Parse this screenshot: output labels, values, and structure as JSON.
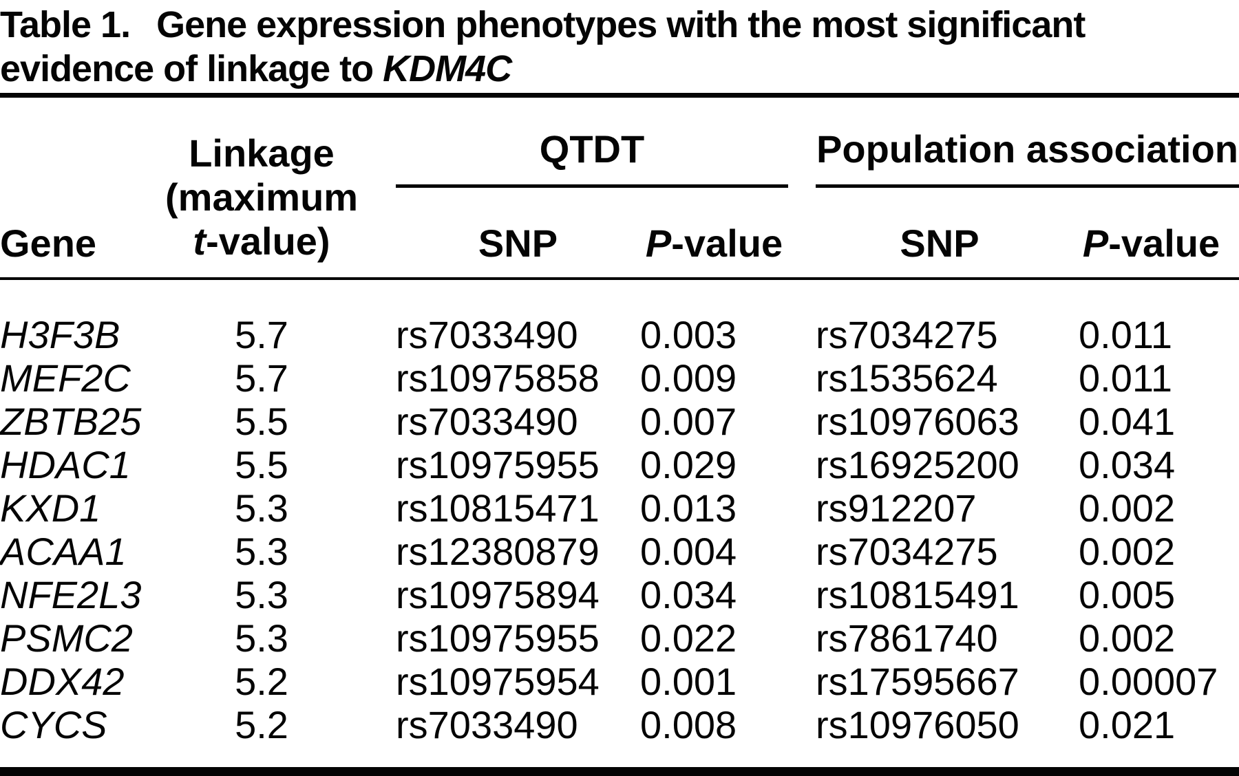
{
  "table": {
    "title": {
      "label": "Table 1.",
      "line1": "Gene expression phenotypes with the most significant",
      "line2": "evidence of linkage to",
      "line2_gene": "KDM4C"
    },
    "headers": {
      "gene": "Gene",
      "linkage_line1": "Linkage",
      "linkage_line2": "(maximum",
      "linkage_line3_italic": "t",
      "linkage_line3_rest": "-value)",
      "qtdt_group": "QTDT",
      "population_group": "Population association",
      "snp": "SNP",
      "pvalue_italic": "P",
      "pvalue_rest": "-value"
    },
    "rows": [
      {
        "gene": "H3F3B",
        "linkage": "5.7",
        "qtdt_snp": "rs7033490",
        "qtdt_p": "0.003",
        "pop_snp": "rs7034275",
        "pop_p": "0.011"
      },
      {
        "gene": "MEF2C",
        "linkage": "5.7",
        "qtdt_snp": "rs10975858",
        "qtdt_p": "0.009",
        "pop_snp": "rs1535624",
        "pop_p": "0.011"
      },
      {
        "gene": "ZBTB25",
        "linkage": "5.5",
        "qtdt_snp": "rs7033490",
        "qtdt_p": "0.007",
        "pop_snp": "rs10976063",
        "pop_p": "0.041"
      },
      {
        "gene": "HDAC1",
        "linkage": "5.5",
        "qtdt_snp": "rs10975955",
        "qtdt_p": "0.029",
        "pop_snp": "rs16925200",
        "pop_p": "0.034"
      },
      {
        "gene": "KXD1",
        "linkage": "5.3",
        "qtdt_snp": "rs10815471",
        "qtdt_p": "0.013",
        "pop_snp": "rs912207",
        "pop_p": "0.002"
      },
      {
        "gene": "ACAA1",
        "linkage": "5.3",
        "qtdt_snp": "rs12380879",
        "qtdt_p": "0.004",
        "pop_snp": "rs7034275",
        "pop_p": "0.002"
      },
      {
        "gene": "NFE2L3",
        "linkage": "5.3",
        "qtdt_snp": "rs10975894",
        "qtdt_p": "0.034",
        "pop_snp": "rs10815491",
        "pop_p": "0.005"
      },
      {
        "gene": "PSMC2",
        "linkage": "5.3",
        "qtdt_snp": "rs10975955",
        "qtdt_p": "0.022",
        "pop_snp": "rs7861740",
        "pop_p": "0.002"
      },
      {
        "gene": "DDX42",
        "linkage": "5.2",
        "qtdt_snp": "rs10975954",
        "qtdt_p": "0.001",
        "pop_snp": "rs17595667",
        "pop_p": "0.00007"
      },
      {
        "gene": "CYCS",
        "linkage": "5.2",
        "qtdt_snp": "rs7033490",
        "qtdt_p": "0.008",
        "pop_snp": "rs10976050",
        "pop_p": "0.021"
      }
    ],
    "colors": {
      "text": "#040404",
      "background": "#ffffff"
    }
  }
}
